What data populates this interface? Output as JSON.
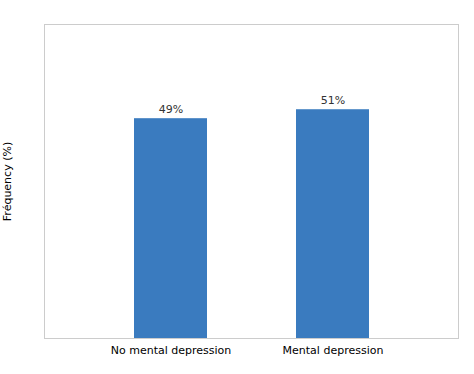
{
  "chart_data": {
    "type": "bar",
    "categories": [
      "No mental depression",
      "Mental depression"
    ],
    "values": [
      49,
      51
    ],
    "value_labels": [
      "49%",
      "51%"
    ],
    "data_labels": true,
    "color": "#3a7bbf",
    "ylabel": "Fréquency (%)",
    "ylim": [
      0,
      70
    ],
    "yticks": [],
    "tick_labels": "x",
    "grid": false
  }
}
